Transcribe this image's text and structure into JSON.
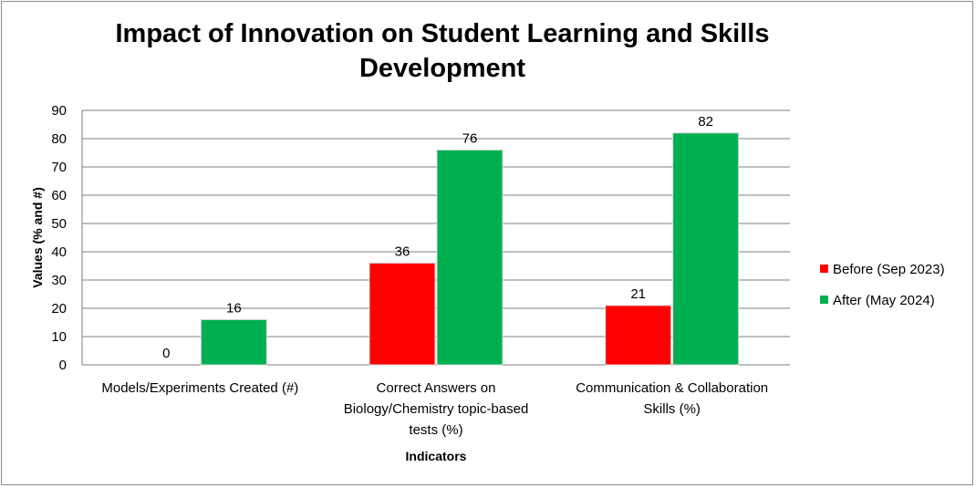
{
  "chart_data": {
    "type": "bar",
    "title": "Impact of Innovation on Student Learning and Skills Development",
    "xlabel": "Indicators",
    "ylabel": "Values (% and #)",
    "ylim": [
      0,
      90
    ],
    "ytick_step": 10,
    "grid": true,
    "legend_position": "right",
    "categories": [
      [
        "Models/Experiments Created (#)"
      ],
      [
        "Correct Answers on",
        "Biology/Chemistry  topic-based",
        "tests (%)"
      ],
      [
        "Communication & Collaboration",
        "Skills (%)"
      ]
    ],
    "series": [
      {
        "name": "Before (Sep 2023)",
        "color": "#ff0000",
        "values": [
          0,
          36,
          21
        ]
      },
      {
        "name": "After (May 2024)",
        "color": "#00b050",
        "values": [
          16,
          76,
          82
        ]
      }
    ]
  }
}
